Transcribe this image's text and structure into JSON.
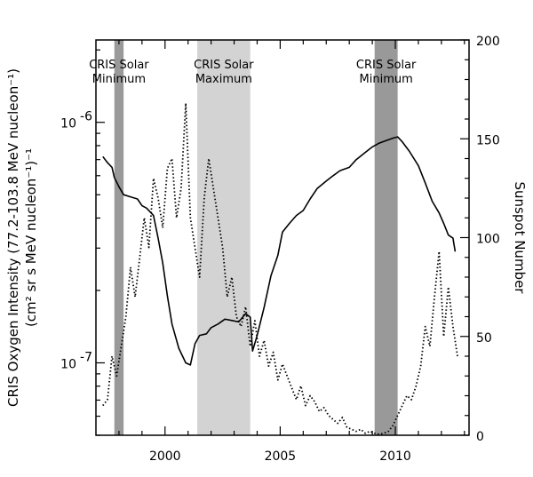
{
  "chart_data": {
    "type": "line",
    "title": "",
    "xlabel": "",
    "ylabel": "CRIS Oxygen Intensity  (77.2-103.8 MeV nucleon⁻¹)",
    "ylabel_line2": "(cm² sr s MeV nucleon⁻¹)⁻¹",
    "y2label": "Sunspot Number",
    "xlim": [
      1997.0,
      2013.2
    ],
    "ylim": [
      5e-08,
      2.2e-06
    ],
    "yscale": "log",
    "y2lim": [
      0,
      200
    ],
    "x_ticks": [
      2000,
      2005,
      2010
    ],
    "x_tick_labels": [
      "2000",
      "2005",
      "2010"
    ],
    "y_tick_labels": [
      {
        "value": 1e-07,
        "base": "10",
        "exp": "-7"
      },
      {
        "value": 1e-06,
        "base": "10",
        "exp": "-6"
      }
    ],
    "y2_ticks": [
      0,
      50,
      100,
      150,
      200
    ],
    "y2_tick_labels": [
      "0",
      "50",
      "100",
      "150",
      "200"
    ],
    "grid": false,
    "bands": [
      {
        "x0": 1997.8,
        "x1": 1998.2,
        "color": "#999999",
        "label_line1": "CRIS Solar",
        "label_line2": "Minimum"
      },
      {
        "x0": 2001.4,
        "x1": 2003.7,
        "color": "#d3d3d3",
        "label_line1": "CRIS Solar",
        "label_line2": "Maximum"
      },
      {
        "x0": 2009.1,
        "x1": 2010.1,
        "color": "#999999",
        "label_line1": "CRIS Solar",
        "label_line2": "Minimum"
      }
    ],
    "series": [
      {
        "style": "solid",
        "axis": "left",
        "x": [
          1997.3,
          1997.5,
          1997.7,
          1997.8,
          1998.0,
          1998.2,
          1998.5,
          1998.8,
          1999.0,
          1999.2,
          1999.5,
          1999.7,
          1999.9,
          2000.1,
          2000.3,
          2000.6,
          2000.9,
          2001.1,
          2001.3,
          2001.5,
          2001.8,
          2002.0,
          2002.3,
          2002.6,
          2002.9,
          2003.2,
          2003.5,
          2003.7,
          2003.8,
          2004.0,
          2004.3,
          2004.6,
          2004.9,
          2005.1,
          2005.4,
          2005.7,
          2006.0,
          2006.3,
          2006.6,
          2007.0,
          2007.3,
          2007.6,
          2008.0,
          2008.3,
          2008.7,
          2009.0,
          2009.3,
          2009.6,
          2009.9,
          2010.1,
          2010.3,
          2010.6,
          2011.0,
          2011.3,
          2011.6,
          2011.9,
          2012.1,
          2012.3,
          2012.5,
          2012.6
        ],
        "y": [
          7.2e-07,
          6.8e-07,
          6.5e-07,
          5.9e-07,
          5.4e-07,
          5e-07,
          4.9e-07,
          4.8e-07,
          4.5e-07,
          4.4e-07,
          4.1e-07,
          3.3e-07,
          2.6e-07,
          1.9e-07,
          1.45e-07,
          1.15e-07,
          1e-07,
          9.8e-08,
          1.2e-07,
          1.3e-07,
          1.32e-07,
          1.4e-07,
          1.45e-07,
          1.52e-07,
          1.5e-07,
          1.48e-07,
          1.6e-07,
          1.55e-07,
          1.12e-07,
          1.3e-07,
          1.7e-07,
          2.3e-07,
          2.8e-07,
          3.5e-07,
          3.8e-07,
          4.1e-07,
          4.3e-07,
          4.8e-07,
          5.3e-07,
          5.7e-07,
          6e-07,
          6.3e-07,
          6.5e-07,
          7e-07,
          7.5e-07,
          7.9e-07,
          8.2e-07,
          8.4e-07,
          8.6e-07,
          8.7e-07,
          8.3e-07,
          7.6e-07,
          6.6e-07,
          5.6e-07,
          4.7e-07,
          4.2e-07,
          3.8e-07,
          3.4e-07,
          3.3e-07,
          2.9e-07
        ]
      },
      {
        "style": "dotted",
        "axis": "right",
        "x": [
          1997.3,
          1997.5,
          1997.7,
          1997.9,
          1998.1,
          1998.3,
          1998.5,
          1998.7,
          1998.9,
          1999.1,
          1999.3,
          1999.5,
          1999.7,
          1999.9,
          2000.1,
          2000.3,
          2000.5,
          2000.7,
          2000.9,
          2001.1,
          2001.3,
          2001.5,
          2001.7,
          2001.9,
          2002.1,
          2002.3,
          2002.5,
          2002.7,
          2002.9,
          2003.1,
          2003.3,
          2003.5,
          2003.7,
          2003.9,
          2004.1,
          2004.3,
          2004.5,
          2004.7,
          2004.9,
          2005.1,
          2005.3,
          2005.5,
          2005.7,
          2005.9,
          2006.1,
          2006.3,
          2006.5,
          2006.7,
          2006.9,
          2007.1,
          2007.3,
          2007.5,
          2007.7,
          2007.9,
          2008.1,
          2008.3,
          2008.5,
          2008.7,
          2008.9,
          2009.1,
          2009.3,
          2009.5,
          2009.7,
          2009.9,
          2010.1,
          2010.3,
          2010.5,
          2010.7,
          2010.9,
          2011.1,
          2011.3,
          2011.5,
          2011.7,
          2011.9,
          2012.1,
          2012.3,
          2012.5,
          2012.7
        ],
        "y": [
          15,
          18,
          40,
          30,
          45,
          60,
          85,
          70,
          90,
          110,
          95,
          130,
          120,
          105,
          135,
          140,
          110,
          125,
          168,
          110,
          95,
          80,
          120,
          140,
          125,
          110,
          95,
          70,
          80,
          60,
          55,
          65,
          45,
          58,
          40,
          48,
          35,
          42,
          28,
          36,
          30,
          24,
          18,
          25,
          15,
          20,
          17,
          12,
          14,
          10,
          8,
          6,
          9,
          4,
          3,
          2,
          3,
          1,
          2,
          1,
          0.5,
          1,
          2,
          5,
          10,
          15,
          20,
          18,
          25,
          35,
          55,
          45,
          70,
          93,
          50,
          75,
          55,
          40
        ]
      }
    ]
  }
}
